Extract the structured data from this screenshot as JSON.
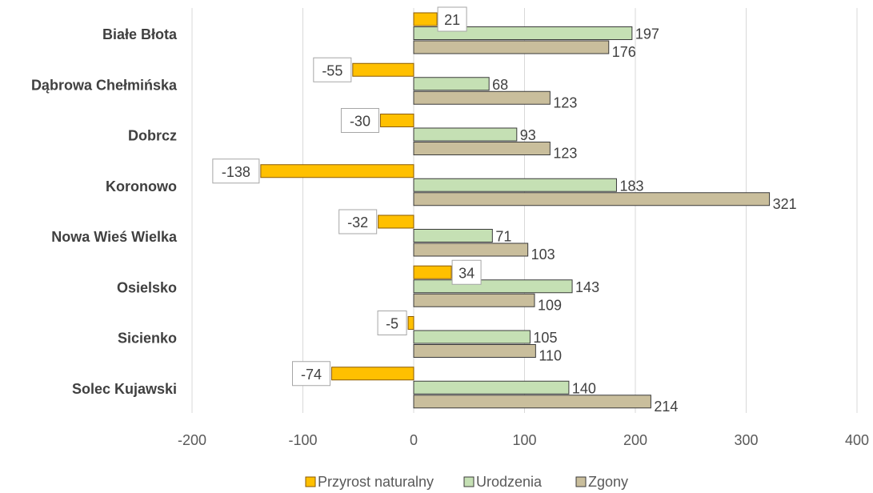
{
  "chart_data": {
    "type": "bar",
    "orientation": "horizontal",
    "categories": [
      "Białe Błota",
      "Dąbrowa Chełmińska",
      "Dobrcz",
      "Koronowo",
      "Nowa Wieś Wielka",
      "Osielsko",
      "Sicienko",
      "Solec Kujawski"
    ],
    "series": [
      {
        "name": "Przyrost naturalny",
        "values": [
          21,
          -55,
          -30,
          -138,
          -32,
          34,
          -5,
          -74
        ],
        "color": "#FFC000"
      },
      {
        "name": "Urodzenia",
        "values": [
          197,
          68,
          93,
          183,
          71,
          143,
          105,
          140
        ],
        "color": "#C5E0B4"
      },
      {
        "name": "Zgony",
        "values": [
          176,
          123,
          123,
          321,
          103,
          109,
          110,
          214
        ],
        "color": "#C9BE9C"
      }
    ],
    "xlim": [
      -200,
      400
    ],
    "xticks": [
      -200,
      -100,
      0,
      100,
      200,
      300,
      400
    ],
    "grid": "vertical",
    "legend_position": "bottom",
    "title": "",
    "xlabel": "",
    "ylabel": ""
  }
}
